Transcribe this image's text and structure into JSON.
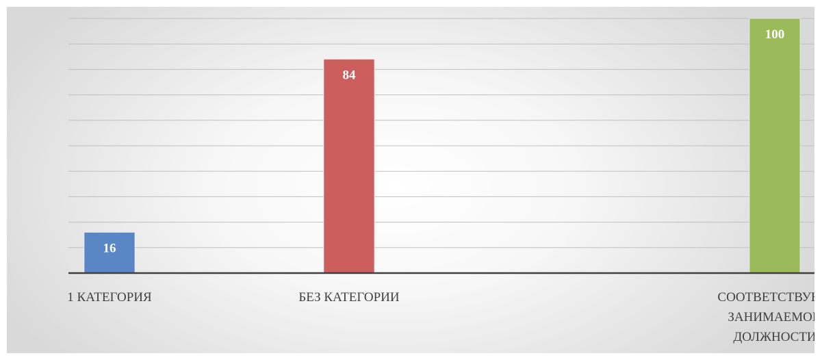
{
  "chart_data": {
    "type": "bar",
    "categories": [
      [
        "1 КАТЕГОРИЯ"
      ],
      [
        "БЕЗ КАТЕГОРИИ"
      ],
      [
        "СООТВЕТСТВУЮТ",
        "ЗАНИМАЕМОЙ",
        "ДОЛЖНОСТИ"
      ]
    ],
    "values": [
      16,
      84,
      100
    ],
    "value_labels": [
      "16",
      "84",
      "100"
    ],
    "colors": [
      "#5a86c5",
      "#cd5e5e",
      "#9bbb5a"
    ],
    "ylim": [
      0,
      100
    ],
    "grid": true,
    "legend": "none"
  }
}
